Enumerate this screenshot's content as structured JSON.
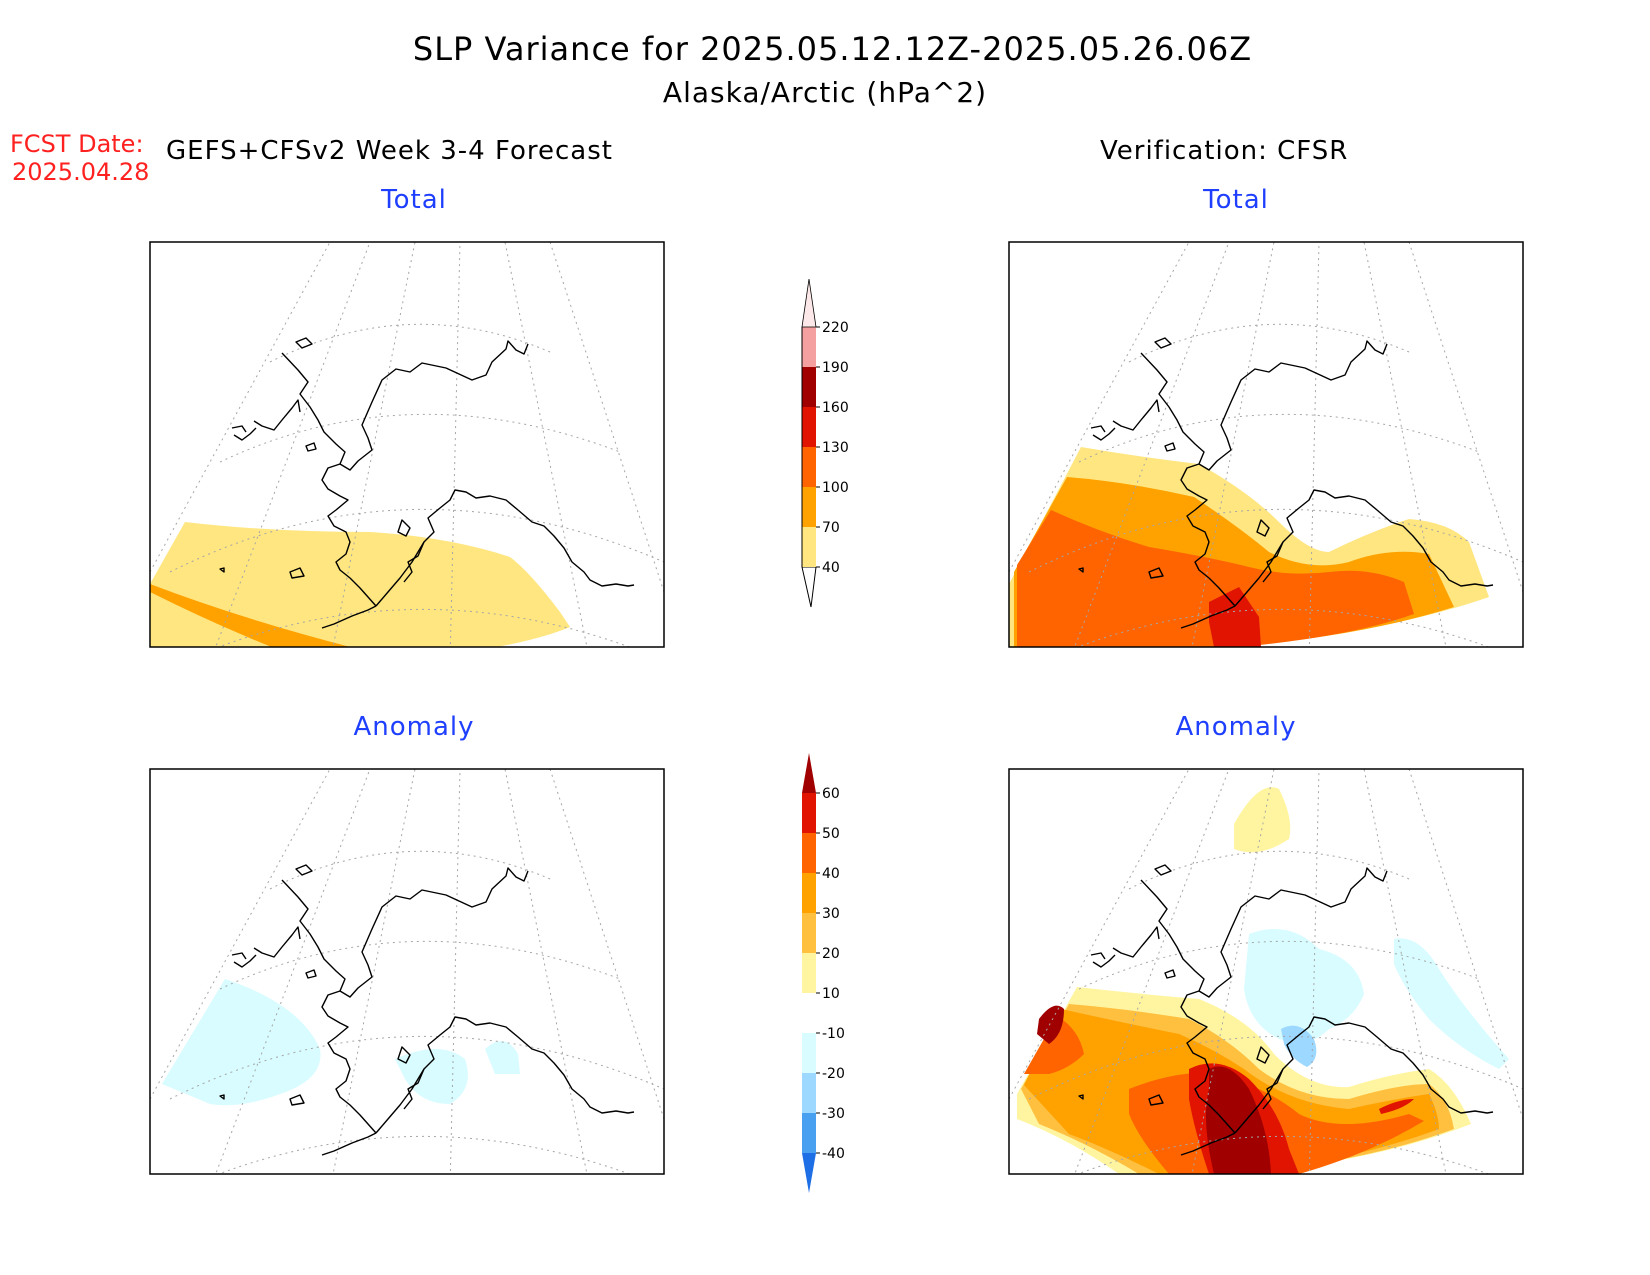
{
  "title": {
    "line1": "SLP Variance for 2025.05.12.12Z-2025.05.26.06Z",
    "line2": "Alaska/Arctic (hPa^2)"
  },
  "fcst": {
    "label": "FCST Date:",
    "date": "2025.04.28"
  },
  "headers": {
    "forecast": "GEFS+CFSv2 Week 3-4 Forecast",
    "verification": "Verification: CFSR"
  },
  "panels": {
    "forecast_total": "Total",
    "verification_total": "Total",
    "forecast_anomaly": "Anomaly",
    "verification_anomaly": "Anomaly"
  },
  "colorbars": {
    "total": {
      "labels": [
        "40",
        "70",
        "100",
        "130",
        "160",
        "190",
        "220"
      ],
      "colors": [
        "#ffe680",
        "#ffa200",
        "#ff6400",
        "#e01400",
        "#a00000",
        "#f4a0a0",
        "#fce8e8"
      ]
    },
    "anomaly": {
      "labels": [
        "60",
        "50",
        "40",
        "30",
        "20",
        "10",
        "-10",
        "-20",
        "-30",
        "-40"
      ],
      "colors_top_to_bottom": [
        "#a00000",
        "#e01400",
        "#ff6400",
        "#ffa200",
        "#ffc040",
        "#fff5a0",
        "#ffffff",
        "#d8fcff",
        "#9cd8ff",
        "#4aa0f0",
        "#1e6ee6"
      ]
    }
  },
  "map": {
    "projection": "polar-stereographic",
    "region": "Alaska/Arctic"
  }
}
